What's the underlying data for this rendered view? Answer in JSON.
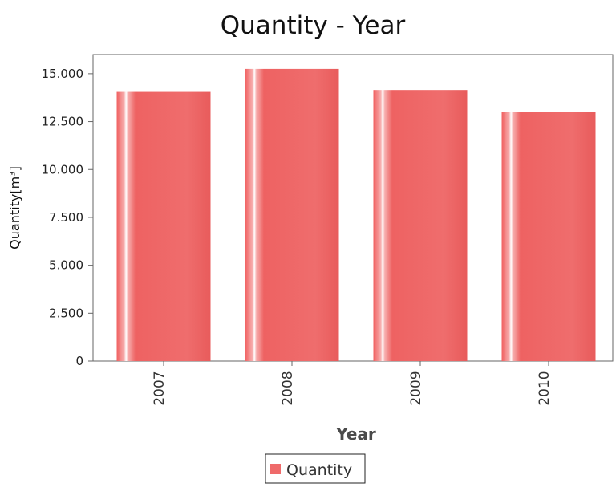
{
  "chart_data": {
    "type": "bar",
    "title": "Quantity - Year",
    "xlabel": "Year",
    "ylabel": "Quantity[m³]",
    "categories": [
      "2007",
      "2008",
      "2009",
      "2010"
    ],
    "series": [
      {
        "name": "Quantity",
        "values": [
          14050,
          15250,
          14150,
          13000
        ],
        "color": "#ef6a6a"
      }
    ],
    "ylim": [
      0,
      16000
    ],
    "yticks": [
      {
        "value": 0,
        "label": "0"
      },
      {
        "value": 2500,
        "label": "2.500"
      },
      {
        "value": 5000,
        "label": "5.000"
      },
      {
        "value": 7500,
        "label": "7.500"
      },
      {
        "value": 10000,
        "label": "10.000"
      },
      {
        "value": 12500,
        "label": "12.500"
      },
      {
        "value": 15000,
        "label": "15.000"
      }
    ],
    "grid": false,
    "legend": {
      "position": "bottom-center",
      "entries": [
        "Quantity"
      ]
    }
  }
}
